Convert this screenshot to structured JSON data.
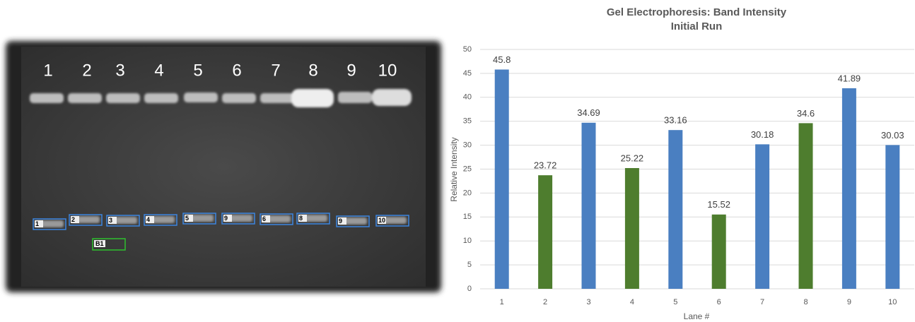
{
  "gel": {
    "lane_labels": [
      "1",
      "2",
      "3",
      "4",
      "5",
      "6",
      "7",
      "8",
      "9",
      "10"
    ],
    "band_labels": [
      "1",
      "2",
      "3",
      "4",
      "5",
      "9",
      "6",
      "8",
      "9",
      "10"
    ],
    "blank_label": "B1"
  },
  "chart_data": {
    "type": "bar",
    "title": "Gel Electrophoresis: Band Intensity",
    "subtitle": "Initial Run",
    "x_label": "Lane #",
    "y_label": "Relative Intensity",
    "categories": [
      "1",
      "2",
      "3",
      "4",
      "5",
      "6",
      "7",
      "8",
      "9",
      "10"
    ],
    "values": [
      45.8,
      23.72,
      34.69,
      25.22,
      33.16,
      15.52,
      30.18,
      34.6,
      41.89,
      30.03
    ],
    "colors": [
      "#4a7fc1",
      "#4e7d2e",
      "#4a7fc1",
      "#4e7d2e",
      "#4a7fc1",
      "#4e7d2e",
      "#4a7fc1",
      "#4e7d2e",
      "#4a7fc1",
      "#4a7fc1"
    ],
    "ylim": [
      0,
      50
    ],
    "yticks": [
      0,
      5,
      10,
      15,
      20,
      25,
      30,
      35,
      40,
      45,
      50
    ],
    "grid": true
  }
}
